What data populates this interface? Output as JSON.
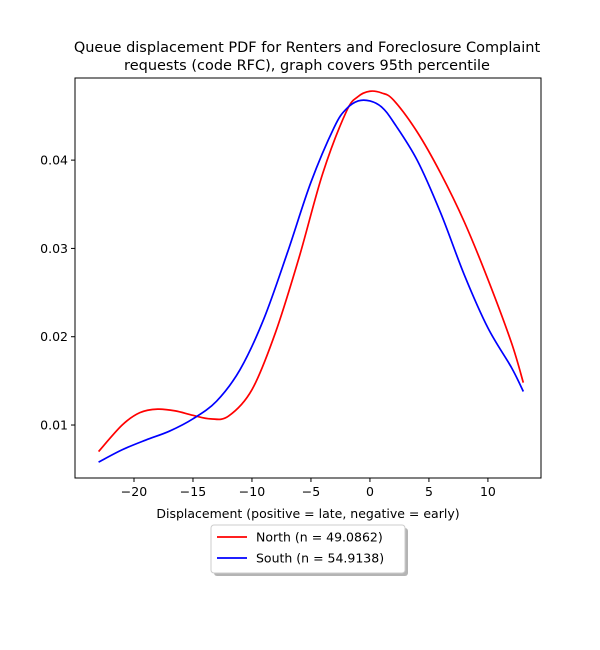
{
  "chart_data": {
    "type": "line",
    "title_lines": [
      "Queue displacement PDF for Renters and Foreclosure Complaint",
      "requests (code RFC), graph covers 95th percentile"
    ],
    "xlabel": "Displacement (positive = late, negative = early)",
    "ylabel": "",
    "xlim": [
      -25.0,
      14.5
    ],
    "ylim": [
      0.004,
      0.0493
    ],
    "x_ticks": [
      -20,
      -15,
      -10,
      -5,
      0,
      5,
      10
    ],
    "x_tick_labels": [
      "−20",
      "−15",
      "−10",
      "−5",
      "0",
      "5",
      "10"
    ],
    "y_ticks": [
      0.01,
      0.02,
      0.03,
      0.04
    ],
    "y_tick_labels": [
      "0.01",
      "0.02",
      "0.03",
      "0.04"
    ],
    "grid": false,
    "legend_position": "below plot, centered",
    "series": [
      {
        "name": "North (n = 49.0862)",
        "color": "#ff0000",
        "x": [
          -23,
          -21,
          -19.5,
          -18,
          -16.5,
          -15,
          -13.5,
          -12,
          -10,
          -8,
          -6,
          -4,
          -2,
          -1,
          0,
          1,
          2,
          4,
          6,
          8,
          10,
          12,
          13
        ],
        "y": [
          0.007,
          0.01,
          0.0114,
          0.0118,
          0.0116,
          0.0111,
          0.0107,
          0.011,
          0.014,
          0.0205,
          0.029,
          0.0385,
          0.0455,
          0.0472,
          0.0478,
          0.0476,
          0.0468,
          0.0432,
          0.0385,
          0.033,
          0.0265,
          0.0193,
          0.0148
        ]
      },
      {
        "name": "South (n = 54.9138)",
        "color": "#0000ff",
        "x": [
          -23,
          -21,
          -19,
          -17,
          -15,
          -13,
          -11,
          -9,
          -7,
          -5,
          -3,
          -2,
          -1,
          0,
          1,
          2,
          4,
          6,
          8,
          10,
          12,
          13
        ],
        "y": [
          0.0058,
          0.0072,
          0.0083,
          0.0093,
          0.0107,
          0.0127,
          0.0163,
          0.022,
          0.0295,
          0.0375,
          0.0438,
          0.0458,
          0.0467,
          0.0467,
          0.046,
          0.0443,
          0.04,
          0.034,
          0.027,
          0.021,
          0.0165,
          0.0138
        ]
      }
    ]
  }
}
